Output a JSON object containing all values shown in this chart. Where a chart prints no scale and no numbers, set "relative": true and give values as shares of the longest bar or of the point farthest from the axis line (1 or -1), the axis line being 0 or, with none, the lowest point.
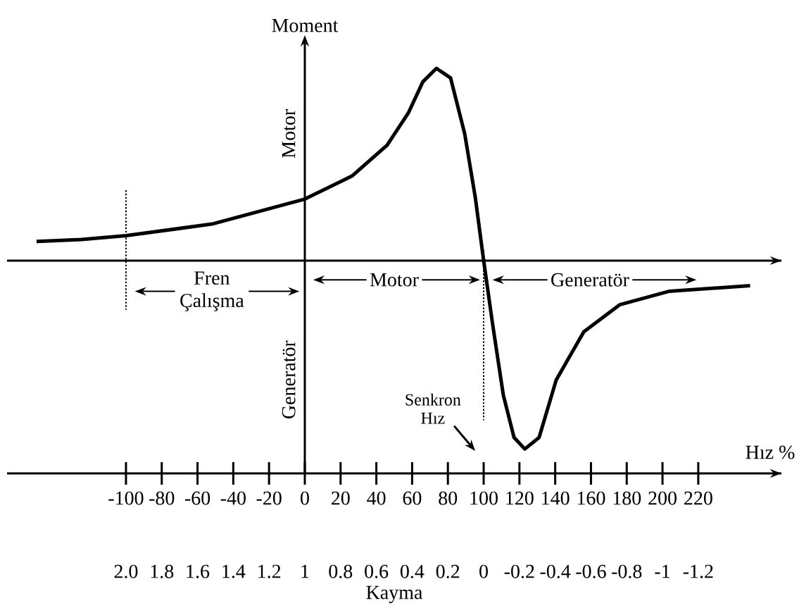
{
  "chart_data": {
    "type": "line",
    "relative": true,
    "ylabel": "Moment",
    "xlabel": "Hız %",
    "x2label": "Kayma",
    "x": [
      -150,
      -125,
      -100,
      -52,
      0,
      26.4,
      46,
      58,
      66,
      73.6,
      81.5,
      89.4,
      95.3,
      100,
      105,
      111,
      117,
      123,
      131,
      140.6,
      156,
      176,
      203.5,
      249
    ],
    "values": [
      0.1,
      0.11,
      0.13,
      0.19,
      0.32,
      0.44,
      0.6,
      0.77,
      0.93,
      1.0,
      0.95,
      0.66,
      0.33,
      0,
      -0.33,
      -0.7,
      -0.92,
      -0.98,
      -0.92,
      -0.62,
      -0.37,
      -0.23,
      -0.16,
      -0.13
    ],
    "color": "#000000",
    "xlim": [
      -166.5,
      266.5
    ],
    "xticks": [
      -100,
      -80,
      -60,
      -40,
      -20,
      0,
      20,
      40,
      60,
      80,
      100,
      120,
      140,
      160,
      180,
      200,
      220
    ],
    "x2lim": [
      2.665,
      -1.665
    ],
    "x2ticks": [
      {
        "value": 2,
        "label": "2.0"
      },
      1.8,
      1.6,
      1.4,
      1.2,
      1,
      0.8,
      0.6,
      0.4,
      0.2,
      0,
      -0.2,
      -0.4,
      -0.6,
      -0.8,
      -1,
      -1.2
    ],
    "ref_lines": [
      {
        "axis": "x",
        "value": -100,
        "line_style": "dotted"
      },
      {
        "axis": "x",
        "value": 100,
        "line_style": "dotted"
      }
    ],
    "annotations": [
      "Motor",
      "Generatör",
      "Fren Çalışma",
      "Motor",
      "Generatör",
      "Senkron Hız"
    ]
  }
}
